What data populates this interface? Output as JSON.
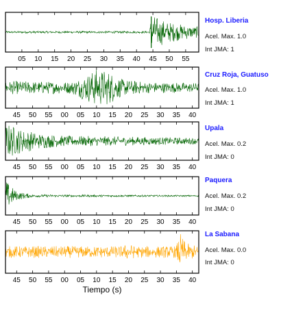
{
  "chart_data": {
    "type": "line",
    "xlabel": "Tiempo (s)",
    "panels": [
      {
        "station": "Hosp. Liberia",
        "accel_label": "Acel. Max. 1.0",
        "jma_label": "Int JMA: 1",
        "color": "#006400",
        "tick_labels": [
          "05",
          "10",
          "15",
          "20",
          "25",
          "30",
          "35",
          "40",
          "45",
          "50",
          "55"
        ],
        "tick_x": [
          5,
          10,
          15,
          20,
          25,
          30,
          35,
          40,
          45,
          50,
          55
        ],
        "xlim": [
          0,
          59
        ],
        "onset_x": 44.5,
        "envelope": [
          [
            0,
            0.06
          ],
          [
            44,
            0.06
          ],
          [
            44.5,
            1.0
          ],
          [
            46,
            0.85
          ],
          [
            49,
            0.6
          ],
          [
            53,
            0.45
          ],
          [
            59,
            0.3
          ]
        ]
      },
      {
        "station": "Cruz Roja, Guatuso",
        "accel_label": "Acel. Max. 1.0",
        "jma_label": "Int JMA: 1",
        "color": "#006400",
        "tick_labels": [
          "45",
          "50",
          "55",
          "00",
          "05",
          "10",
          "15",
          "20",
          "25",
          "30",
          "35",
          "40"
        ],
        "tick_x": [
          45,
          50,
          55,
          60,
          65,
          70,
          75,
          80,
          85,
          90,
          95,
          100
        ],
        "xlim": [
          41.5,
          102
        ],
        "envelope": [
          [
            41.5,
            0.35
          ],
          [
            62,
            0.32
          ],
          [
            65,
            0.55
          ],
          [
            70,
            1.0
          ],
          [
            74,
            0.9
          ],
          [
            78,
            0.45
          ],
          [
            85,
            0.3
          ],
          [
            102,
            0.25
          ]
        ]
      },
      {
        "station": "Upala",
        "accel_label": "Acel. Max. 0.2",
        "jma_label": "Int JMA: 0",
        "color": "#006400",
        "tick_labels": [
          "45",
          "50",
          "55",
          "00",
          "05",
          "10",
          "15",
          "20",
          "25",
          "30",
          "35",
          "40"
        ],
        "tick_x": [
          45,
          50,
          55,
          60,
          65,
          70,
          75,
          80,
          85,
          90,
          95,
          100
        ],
        "xlim": [
          41.5,
          102
        ],
        "envelope": [
          [
            41.5,
            1.0
          ],
          [
            43,
            0.95
          ],
          [
            46,
            0.7
          ],
          [
            52,
            0.45
          ],
          [
            60,
            0.3
          ],
          [
            70,
            0.28
          ],
          [
            80,
            0.25
          ],
          [
            102,
            0.18
          ]
        ]
      },
      {
        "station": "Paquera",
        "accel_label": "Acel. Max. 0.2",
        "jma_label": "Int JMA: 0",
        "color": "#006400",
        "tick_labels": [
          "45",
          "50",
          "55",
          "00",
          "05",
          "10",
          "15",
          "20",
          "25",
          "30",
          "35",
          "40"
        ],
        "tick_x": [
          45,
          50,
          55,
          60,
          65,
          70,
          75,
          80,
          85,
          90,
          95,
          100
        ],
        "xlim": [
          41.5,
          102
        ],
        "envelope": [
          [
            41.5,
            1.0
          ],
          [
            42.5,
            0.7
          ],
          [
            45,
            0.25
          ],
          [
            50,
            0.08
          ],
          [
            102,
            0.04
          ]
        ]
      },
      {
        "station": "La Sabana",
        "accel_label": "Acel. Max. 0.0",
        "jma_label": "Int JMA: 0",
        "color": "#ffa500",
        "tick_labels": [
          "45",
          "50",
          "55",
          "00",
          "05",
          "10",
          "15",
          "20",
          "25",
          "30",
          "35",
          "40"
        ],
        "tick_x": [
          45,
          50,
          55,
          60,
          65,
          70,
          75,
          80,
          85,
          90,
          95,
          100
        ],
        "xlim": [
          41.5,
          102
        ],
        "envelope": [
          [
            41.5,
            0.3
          ],
          [
            78,
            0.3
          ],
          [
            80,
            0.45
          ],
          [
            82,
            0.3
          ],
          [
            95,
            0.3
          ],
          [
            96,
            1.0
          ],
          [
            98,
            0.45
          ],
          [
            102,
            0.3
          ]
        ]
      }
    ]
  }
}
